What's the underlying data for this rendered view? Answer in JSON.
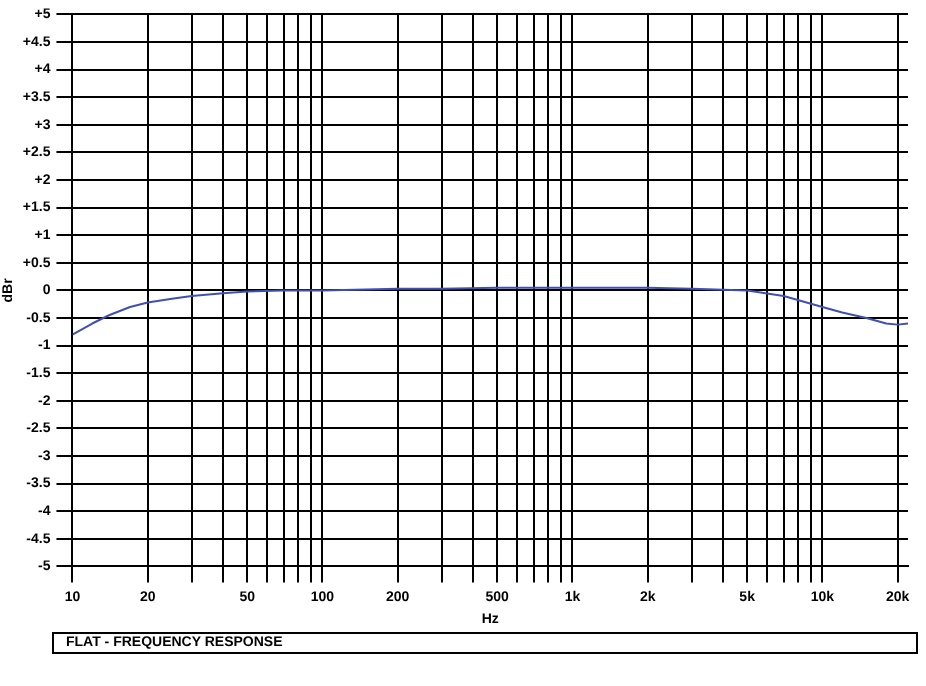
{
  "chart_data": {
    "type": "line",
    "xlabel": "Hz",
    "ylabel": "dBr",
    "x": [
      10,
      12,
      14,
      17,
      20,
      25,
      30,
      40,
      50,
      70,
      100,
      200,
      300,
      500,
      1000,
      2000,
      3000,
      5000,
      7000,
      10000,
      12000,
      15000,
      18000,
      20000,
      22000
    ],
    "series": [
      {
        "color": "#4050b0",
        "values": [
          -0.8,
          -0.6,
          -0.45,
          -0.3,
          -0.22,
          -0.15,
          -0.1,
          -0.05,
          -0.02,
          0,
          0,
          0.03,
          0.03,
          0.05,
          0.05,
          0.05,
          0.03,
          0,
          -0.1,
          -0.3,
          -0.4,
          -0.5,
          -0.6,
          -0.62,
          -0.6
        ]
      }
    ],
    "xlim": [
      10,
      22000
    ],
    "xticks": [
      {
        "value": 10,
        "label": "10"
      },
      {
        "value": 20,
        "label": "20"
      },
      {
        "value": 30,
        "label": null
      },
      {
        "value": 40,
        "label": null
      },
      {
        "value": 50,
        "label": "50"
      },
      {
        "value": 60,
        "label": null
      },
      {
        "value": 70,
        "label": null
      },
      {
        "value": 80,
        "label": null
      },
      {
        "value": 90,
        "label": null
      },
      {
        "value": 100,
        "label": "100"
      },
      {
        "value": 200,
        "label": "200"
      },
      {
        "value": 300,
        "label": null
      },
      {
        "value": 400,
        "label": null
      },
      {
        "value": 500,
        "label": "500"
      },
      {
        "value": 600,
        "label": null
      },
      {
        "value": 700,
        "label": null
      },
      {
        "value": 800,
        "label": null
      },
      {
        "value": 900,
        "label": null
      },
      {
        "value": 1000,
        "label": "1k"
      },
      {
        "value": 2000,
        "label": "2k"
      },
      {
        "value": 3000,
        "label": null
      },
      {
        "value": 4000,
        "label": null
      },
      {
        "value": 5000,
        "label": "5k"
      },
      {
        "value": 6000,
        "label": null
      },
      {
        "value": 7000,
        "label": null
      },
      {
        "value": 8000,
        "label": null
      },
      {
        "value": 9000,
        "label": null
      },
      {
        "value": 10000,
        "label": "10k"
      },
      {
        "value": 20000,
        "label": "20k"
      }
    ],
    "ylim": [
      -5,
      5
    ],
    "yticks": [
      {
        "value": -5,
        "label": "-5"
      },
      {
        "value": -4.5,
        "label": "-4.5"
      },
      {
        "value": -4,
        "label": "-4"
      },
      {
        "value": -3.5,
        "label": "-3.5"
      },
      {
        "value": -3,
        "label": "-3"
      },
      {
        "value": -2.5,
        "label": "-2.5"
      },
      {
        "value": -2,
        "label": "-2"
      },
      {
        "value": -1.5,
        "label": "-1.5"
      },
      {
        "value": -1,
        "label": "-1"
      },
      {
        "value": -0.5,
        "label": "-0.5"
      },
      0,
      {
        "value": 0.5,
        "label": "+0.5"
      },
      {
        "value": 1,
        "label": "+1"
      },
      {
        "value": 1.5,
        "label": "+1.5"
      },
      {
        "value": 2,
        "label": "+2"
      },
      {
        "value": 2.5,
        "label": "+2.5"
      },
      {
        "value": 3,
        "label": "+3"
      },
      {
        "value": 3.5,
        "label": "+3.5"
      },
      {
        "value": 4,
        "label": "+4"
      },
      {
        "value": 4.5,
        "label": "+4.5"
      },
      {
        "value": 5,
        "label": "+5"
      }
    ],
    "log": "x",
    "grid": true,
    "marker": "none",
    "line_style": "solid",
    "legend": false,
    "annotations": [
      "FLAT - FREQUENCY RESPONSE"
    ]
  }
}
